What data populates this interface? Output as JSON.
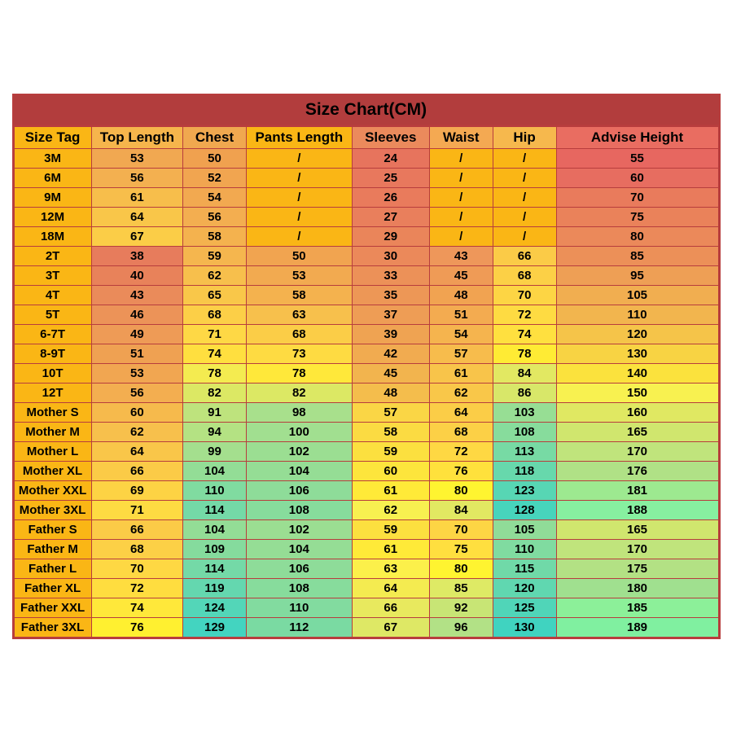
{
  "title": "Size Chart(CM)",
  "columns": [
    "Size Tag",
    "Top Length",
    "Chest",
    "Pants Length",
    "Sleeves",
    "Waist",
    "Hip",
    "Advise Height"
  ],
  "col_widths": [
    "11%",
    "13%",
    "9%",
    "15%",
    "11%",
    "9%",
    "9%",
    "23%"
  ],
  "header_colors": [
    "#fab615",
    "#f6b54c",
    "#f0a84f",
    "#fab615",
    "#eb8a5c",
    "#f4a952",
    "#f6b84d",
    "#e96d61"
  ],
  "rows": [
    {
      "cells": [
        "3M",
        "53",
        "50",
        "/",
        "24",
        "/",
        "/",
        "55"
      ],
      "colors": [
        "#fab615",
        "#f1a851",
        "#f0a14f",
        "#fab615",
        "#e7745d",
        "#fab615",
        "#fab615",
        "#e76760"
      ]
    },
    {
      "cells": [
        "6M",
        "56",
        "52",
        "/",
        "25",
        "/",
        "/",
        "60"
      ],
      "colors": [
        "#fab615",
        "#f3b050",
        "#f1a550",
        "#fab615",
        "#e8785d",
        "#fab615",
        "#fab615",
        "#e76d60"
      ]
    },
    {
      "cells": [
        "9M",
        "61",
        "54",
        "/",
        "26",
        "/",
        "/",
        "70"
      ],
      "colors": [
        "#fab615",
        "#f7be4b",
        "#f2a950",
        "#fab615",
        "#e97b5c",
        "#fab615",
        "#fab615",
        "#e97b5c"
      ]
    },
    {
      "cells": [
        "12M",
        "64",
        "56",
        "/",
        "27",
        "/",
        "/",
        "75"
      ],
      "colors": [
        "#fab615",
        "#f9c649",
        "#f3ae50",
        "#fab615",
        "#e97f5c",
        "#fab615",
        "#fab615",
        "#ea825a"
      ]
    },
    {
      "cells": [
        "18M",
        "67",
        "58",
        "/",
        "29",
        "/",
        "/",
        "80"
      ],
      "colors": [
        "#fab615",
        "#fbcd47",
        "#f4b24e",
        "#fab615",
        "#ea855a",
        "#fab615",
        "#fab615",
        "#eb895a"
      ]
    },
    {
      "cells": [
        "2T",
        "38",
        "59",
        "50",
        "30",
        "43",
        "66",
        "85"
      ],
      "colors": [
        "#fab615",
        "#e77c5c",
        "#f5b64e",
        "#f1a450",
        "#eb895a",
        "#ee975a",
        "#fbcb47",
        "#ec9058"
      ]
    },
    {
      "cells": [
        "3T",
        "40",
        "62",
        "53",
        "33",
        "45",
        "68",
        "95"
      ],
      "colors": [
        "#fab615",
        "#e8825a",
        "#f7bf4c",
        "#f2aa50",
        "#ec9158",
        "#ef9b56",
        "#fcd046",
        "#ee9f55"
      ]
    },
    {
      "cells": [
        "4T",
        "43",
        "65",
        "58",
        "35",
        "48",
        "70",
        "105"
      ],
      "colors": [
        "#fab615",
        "#ea8b5a",
        "#f9c749",
        "#f4b24e",
        "#ed9756",
        "#f1a351",
        "#fdd544",
        "#f1ae50"
      ]
    },
    {
      "cells": [
        "5T",
        "46",
        "68",
        "63",
        "37",
        "51",
        "72",
        "110"
      ],
      "colors": [
        "#fab615",
        "#ec9358",
        "#fccf47",
        "#f7c04c",
        "#ee9d55",
        "#f3ab50",
        "#fedb42",
        "#f2b54e"
      ]
    },
    {
      "cells": [
        "6-7T",
        "49",
        "71",
        "68",
        "39",
        "54",
        "74",
        "120"
      ],
      "colors": [
        "#fab615",
        "#ee9b56",
        "#fed845",
        "#fbcd47",
        "#efa352",
        "#f5b44e",
        "#ffe03f",
        "#f5c449"
      ]
    },
    {
      "cells": [
        "8-9T",
        "51",
        "74",
        "73",
        "42",
        "57",
        "78",
        "130"
      ],
      "colors": [
        "#fab615",
        "#efa152",
        "#ffdf3f",
        "#fedb42",
        "#f1ab50",
        "#f7bc4c",
        "#ffeb34",
        "#f8d343"
      ]
    },
    {
      "cells": [
        "10T",
        "53",
        "78",
        "78",
        "45",
        "61",
        "84",
        "140"
      ],
      "colors": [
        "#fab615",
        "#f1a651",
        "#f4eb50",
        "#ffe83a",
        "#f2b44e",
        "#f8c44a",
        "#e2e862",
        "#fbe23d"
      ]
    },
    {
      "cells": [
        "12T",
        "56",
        "82",
        "82",
        "48",
        "62",
        "86",
        "150"
      ],
      "colors": [
        "#fab615",
        "#f3ae50",
        "#dce864",
        "#dce864",
        "#f4bd4c",
        "#f9c749",
        "#d8e769",
        "#f8f150"
      ]
    },
    {
      "cells": [
        "Mother S",
        "60",
        "91",
        "98",
        "57",
        "64",
        "103",
        "160"
      ],
      "colors": [
        "#fab615",
        "#f6ba4c",
        "#bee37d",
        "#a8e08c",
        "#fad645",
        "#fbcd47",
        "#97de94",
        "#e0e862"
      ]
    },
    {
      "cells": [
        "Mother M",
        "62",
        "94",
        "100",
        "58",
        "68",
        "108",
        "165"
      ],
      "colors": [
        "#fab615",
        "#f7c04c",
        "#b4e283",
        "#a1df90",
        "#fbdb42",
        "#fcd046",
        "#87dc9c",
        "#d0e66e"
      ]
    },
    {
      "cells": [
        "Mother L",
        "64",
        "99",
        "102",
        "59",
        "72",
        "113",
        "170"
      ],
      "colors": [
        "#fab615",
        "#f9c649",
        "#a4df8e",
        "#9bde92",
        "#fce03f",
        "#fed843",
        "#77daa4",
        "#c0e47c"
      ]
    },
    {
      "cells": [
        "Mother XL",
        "66",
        "104",
        "104",
        "60",
        "76",
        "118",
        "176"
      ],
      "colors": [
        "#fab615",
        "#fbcb47",
        "#93dd96",
        "#95dd95",
        "#fde53c",
        "#ffe13c",
        "#67d8ac",
        "#b0e186"
      ]
    },
    {
      "cells": [
        "Mother XXL",
        "69",
        "110",
        "106",
        "61",
        "80",
        "123",
        "181"
      ],
      "colors": [
        "#fab615",
        "#fdd344",
        "#80dba0",
        "#8edc99",
        "#ffea38",
        "#fff430",
        "#57d6b4",
        "#9de990"
      ]
    },
    {
      "cells": [
        "Mother 3XL",
        "71",
        "114",
        "108",
        "62",
        "84",
        "128",
        "188"
      ],
      "colors": [
        "#fab615",
        "#fedb42",
        "#74d9a7",
        "#87dc9c",
        "#f8f050",
        "#e2e862",
        "#47d4bc",
        "#87f0a0"
      ]
    },
    {
      "cells": [
        "Father S",
        "66",
        "104",
        "102",
        "59",
        "70",
        "105",
        "165"
      ],
      "colors": [
        "#fab615",
        "#fbcb47",
        "#93dd96",
        "#9bde92",
        "#fce03f",
        "#fdd544",
        "#90dc98",
        "#d0e66e"
      ]
    },
    {
      "cells": [
        "Father M",
        "68",
        "109",
        "104",
        "61",
        "75",
        "110",
        "170"
      ],
      "colors": [
        "#fab615",
        "#fcd046",
        "#85db9d",
        "#95dd95",
        "#ffea38",
        "#ffdf3f",
        "#80dba0",
        "#c0e47c"
      ]
    },
    {
      "cells": [
        "Father L",
        "70",
        "114",
        "106",
        "63",
        "80",
        "115",
        "175"
      ],
      "colors": [
        "#fab615",
        "#fed843",
        "#74d9a7",
        "#8edc99",
        "#fcf04a",
        "#fff430",
        "#70d9a8",
        "#b3e184"
      ]
    },
    {
      "cells": [
        "Father XL",
        "72",
        "119",
        "108",
        "64",
        "85",
        "120",
        "180"
      ],
      "colors": [
        "#fab615",
        "#ffdd3f",
        "#64d7af",
        "#87dc9c",
        "#f4eb50",
        "#deea65",
        "#60d7b0",
        "#a0e08f"
      ]
    },
    {
      "cells": [
        "Father XXL",
        "74",
        "124",
        "110",
        "66",
        "92",
        "125",
        "185"
      ],
      "colors": [
        "#fab615",
        "#ffe83a",
        "#53d6b8",
        "#82db9f",
        "#e8e95e",
        "#c8e575",
        "#50d5b8",
        "#8cf099"
      ]
    },
    {
      "cells": [
        "Father 3XL",
        "76",
        "129",
        "112",
        "67",
        "96",
        "130",
        "189"
      ],
      "colors": [
        "#fab615",
        "#fff030",
        "#43d4c0",
        "#7adaa2",
        "#dee865",
        "#b2e186",
        "#40d3c0",
        "#80f0a0"
      ]
    }
  ]
}
